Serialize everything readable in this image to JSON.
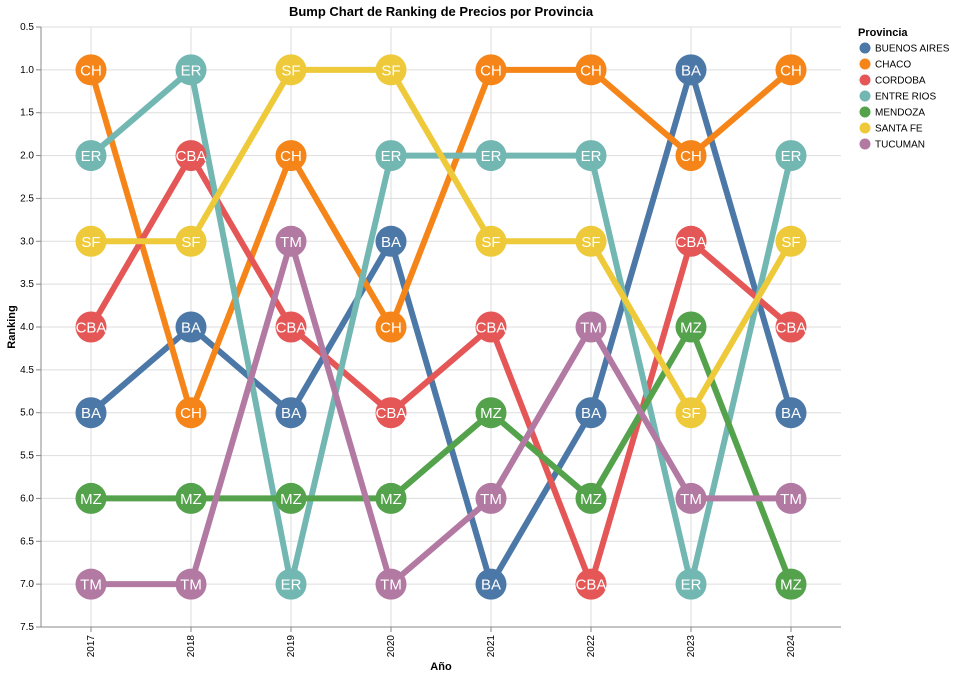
{
  "chart_data": {
    "type": "line",
    "title": "Bump Chart de Ranking de Precios por Provincia",
    "xlabel": "Año",
    "ylabel": "Ranking",
    "x": [
      "2017",
      "2018",
      "2019",
      "2020",
      "2021",
      "2022",
      "2023",
      "2024"
    ],
    "y_ticks": [
      "0.5",
      "1.0",
      "1.5",
      "2.0",
      "2.5",
      "3.0",
      "3.5",
      "4.0",
      "4.5",
      "5.0",
      "5.5",
      "6.0",
      "6.5",
      "7.0",
      "7.5"
    ],
    "ylim": [
      0.5,
      7.5
    ],
    "y_reversed": true,
    "grid": true,
    "legend_title": "Provincia",
    "legend_position": "right",
    "series": [
      {
        "name": "BUENOS AIRES",
        "abbr": "BA",
        "color": "#4c78a8",
        "values": [
          5,
          4,
          5,
          3,
          7,
          5,
          1,
          5
        ]
      },
      {
        "name": "CHACO",
        "abbr": "CH",
        "color": "#f58518",
        "values": [
          1,
          5,
          2,
          4,
          1,
          1,
          2,
          1
        ]
      },
      {
        "name": "CORDOBA",
        "abbr": "CBA",
        "color": "#e45756",
        "values": [
          4,
          2,
          4,
          5,
          4,
          7,
          3,
          4
        ]
      },
      {
        "name": "ENTRE RIOS",
        "abbr": "ER",
        "color": "#72b7b2",
        "values": [
          2,
          1,
          7,
          2,
          2,
          2,
          7,
          2
        ]
      },
      {
        "name": "MENDOZA",
        "abbr": "MZ",
        "color": "#54a24b",
        "values": [
          6,
          6,
          6,
          6,
          5,
          6,
          4,
          7
        ]
      },
      {
        "name": "SANTA FE",
        "abbr": "SF",
        "color": "#eeca3b",
        "values": [
          3,
          3,
          1,
          1,
          3,
          3,
          5,
          3
        ]
      },
      {
        "name": "TUCUMAN",
        "abbr": "TM",
        "color": "#b279a2",
        "values": [
          7,
          7,
          3,
          7,
          6,
          4,
          6,
          6
        ]
      }
    ]
  }
}
